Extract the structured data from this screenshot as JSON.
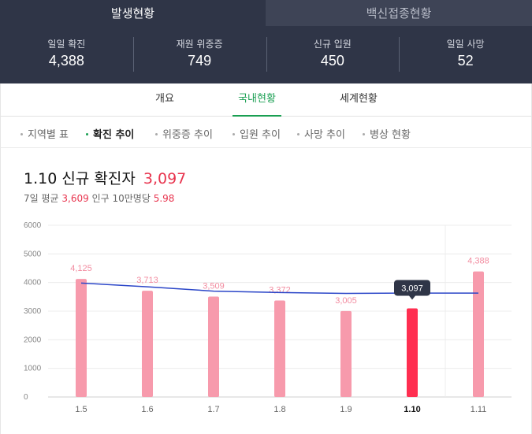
{
  "top_tabs": [
    {
      "label": "발생현황",
      "active": true
    },
    {
      "label": "백신접종현황",
      "active": false
    }
  ],
  "stats": [
    {
      "label": "일일 확진",
      "value": "4,388"
    },
    {
      "label": "재원 위중증",
      "value": "749"
    },
    {
      "label": "신규 입원",
      "value": "450"
    },
    {
      "label": "일일 사망",
      "value": "52"
    }
  ],
  "nav2": [
    {
      "label": "개요",
      "active": false
    },
    {
      "label": "국내현황",
      "active": true
    },
    {
      "label": "세계현황",
      "active": false
    }
  ],
  "nav3": [
    {
      "label": "지역별 표",
      "active": false
    },
    {
      "label": "확진 추이",
      "active": true
    },
    {
      "label": "위중증 추이",
      "active": false
    },
    {
      "label": "입원 추이",
      "active": false
    },
    {
      "label": "사망 추이",
      "active": false
    },
    {
      "label": "병상 현황",
      "active": false
    }
  ],
  "headline": {
    "date": "1.10",
    "label": "신규 확진자",
    "value": "3,097"
  },
  "subline": {
    "avg_label": "7일 평균",
    "avg_value": "3,609",
    "pop_label": "인구 10만명당",
    "pop_value": "5.98"
  },
  "colors": {
    "bar": "#f79aac",
    "bar_highlight": "#ff2e50",
    "line": "#2b46c8",
    "accent_green": "#1a9f52",
    "accent_red": "#e8344e"
  },
  "chart_data": {
    "type": "bar",
    "categories": [
      "1.5",
      "1.6",
      "1.7",
      "1.8",
      "1.9",
      "1.10",
      "1.11"
    ],
    "series": [
      {
        "values": [
          4125,
          3713,
          3509,
          3372,
          3005,
          3097,
          4388
        ]
      },
      {
        "type": "line",
        "values": [
          3980,
          3850,
          3700,
          3650,
          3620,
          3630,
          3630
        ]
      }
    ],
    "data_labels": [
      "4,125",
      "3,713",
      "3,509",
      "3,372",
      "3,005",
      "3,097",
      "4,388"
    ],
    "highlight_index": 5,
    "ylim": [
      0,
      6000
    ],
    "yticks": [
      0,
      1000,
      2000,
      3000,
      4000,
      5000,
      6000
    ],
    "grid": true
  }
}
